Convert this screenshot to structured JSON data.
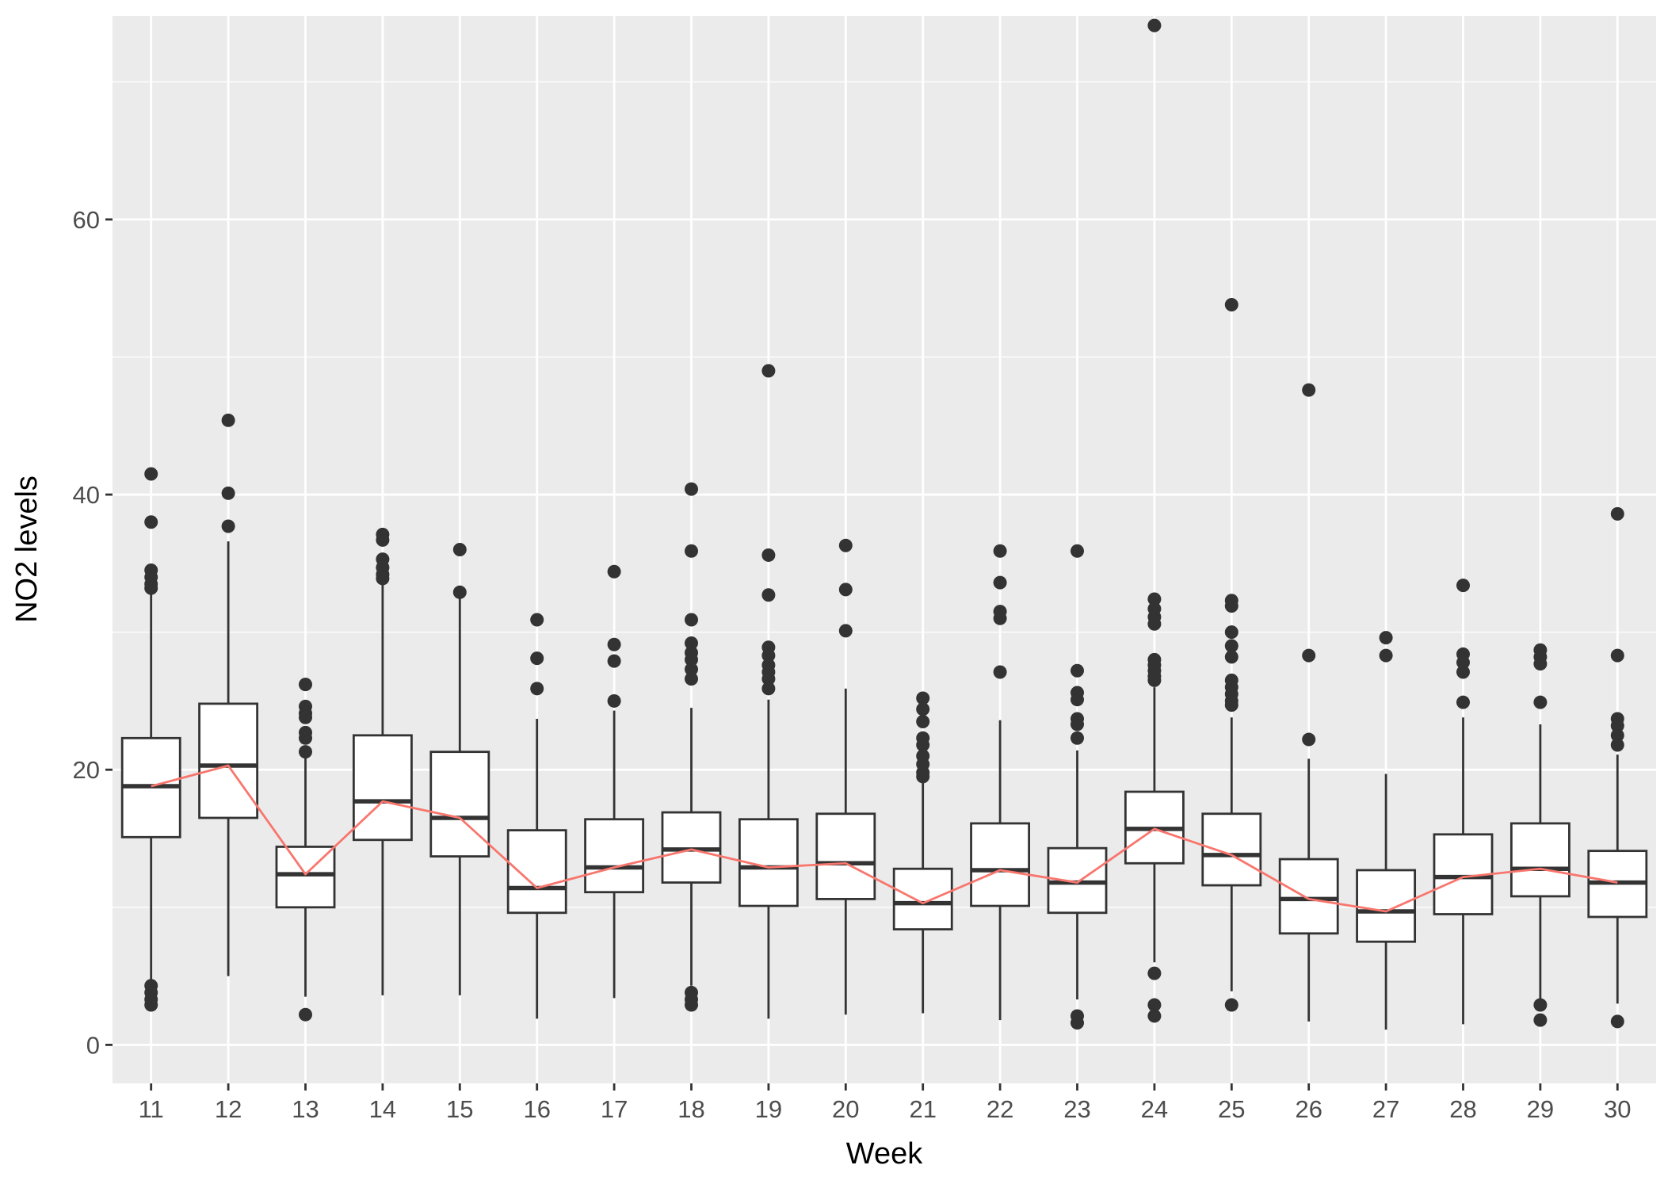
{
  "chart_data": {
    "type": "boxplot",
    "xlabel": "Week",
    "ylabel": "NO2 levels",
    "ylim": [
      -2.8,
      74.8
    ],
    "yticks": [
      0,
      20,
      40,
      60
    ],
    "categories": [
      "11",
      "12",
      "13",
      "14",
      "15",
      "16",
      "17",
      "18",
      "19",
      "20",
      "21",
      "22",
      "23",
      "24",
      "25",
      "26",
      "27",
      "28",
      "29",
      "30"
    ],
    "boxes": [
      {
        "lo": 4.3,
        "q1": 15.1,
        "med": 18.8,
        "q3": 22.3,
        "hi": 32.8,
        "outliers": [
          41.5,
          38.0,
          34.5,
          34.0,
          33.5,
          33.2,
          4.3,
          3.8,
          3.3,
          2.9
        ]
      },
      {
        "lo": 5.0,
        "q1": 16.5,
        "med": 20.3,
        "q3": 24.8,
        "hi": 36.6,
        "outliers": [
          45.4,
          40.1,
          37.7
        ]
      },
      {
        "lo": 3.5,
        "q1": 10.0,
        "med": 12.4,
        "q3": 14.4,
        "hi": 21.1,
        "outliers": [
          26.2,
          24.6,
          24.1,
          23.8,
          22.7,
          22.3,
          21.3,
          2.2
        ]
      },
      {
        "lo": 3.6,
        "q1": 14.9,
        "med": 17.7,
        "q3": 22.5,
        "hi": 33.7,
        "outliers": [
          37.1,
          36.7,
          35.3,
          34.7,
          34.2,
          33.9
        ]
      },
      {
        "lo": 3.6,
        "q1": 13.7,
        "med": 16.5,
        "q3": 21.3,
        "hi": 32.6,
        "outliers": [
          36.0,
          32.9
        ]
      },
      {
        "lo": 1.9,
        "q1": 9.6,
        "med": 11.4,
        "q3": 15.6,
        "hi": 23.7,
        "outliers": [
          30.9,
          28.1,
          25.9
        ]
      },
      {
        "lo": 3.4,
        "q1": 11.1,
        "med": 12.9,
        "q3": 16.4,
        "hi": 24.3,
        "outliers": [
          34.4,
          29.1,
          27.9,
          25.0
        ]
      },
      {
        "lo": 4.3,
        "q1": 11.8,
        "med": 14.2,
        "q3": 16.9,
        "hi": 24.5,
        "outliers": [
          40.4,
          35.9,
          30.9,
          29.2,
          28.5,
          28.0,
          27.3,
          26.6,
          3.8,
          3.3,
          2.9
        ]
      },
      {
        "lo": 1.9,
        "q1": 10.1,
        "med": 12.9,
        "q3": 16.4,
        "hi": 25.1,
        "outliers": [
          49.0,
          35.6,
          32.7,
          28.9,
          28.3,
          27.6,
          27.1,
          26.6,
          25.9
        ]
      },
      {
        "lo": 2.2,
        "q1": 10.6,
        "med": 13.2,
        "q3": 16.8,
        "hi": 25.9,
        "outliers": [
          36.3,
          33.1,
          30.1
        ]
      },
      {
        "lo": 2.3,
        "q1": 8.4,
        "med": 10.3,
        "q3": 12.8,
        "hi": 19.2,
        "outliers": [
          25.2,
          24.4,
          23.5,
          22.3,
          21.8,
          21.0,
          20.4,
          19.8,
          19.5
        ]
      },
      {
        "lo": 1.8,
        "q1": 10.1,
        "med": 12.7,
        "q3": 16.1,
        "hi": 23.6,
        "outliers": [
          35.9,
          33.6,
          31.5,
          31.0,
          27.1
        ]
      },
      {
        "lo": 3.3,
        "q1": 9.6,
        "med": 11.8,
        "q3": 14.3,
        "hi": 21.4,
        "outliers": [
          35.9,
          27.2,
          25.6,
          25.1,
          23.7,
          23.3,
          22.3,
          2.1,
          1.6
        ]
      },
      {
        "lo": 6.0,
        "q1": 13.2,
        "med": 15.7,
        "q3": 18.4,
        "hi": 26.0,
        "outliers": [
          74.1,
          32.4,
          31.7,
          31.1,
          30.6,
          28.0,
          27.6,
          27.2,
          26.8,
          26.5,
          5.2,
          2.9,
          2.1
        ]
      },
      {
        "lo": 3.9,
        "q1": 11.6,
        "med": 13.8,
        "q3": 16.8,
        "hi": 23.8,
        "outliers": [
          53.8,
          32.3,
          31.9,
          30.0,
          29.0,
          28.2,
          26.5,
          26.0,
          25.5,
          25.0,
          24.7,
          2.9
        ]
      },
      {
        "lo": 1.7,
        "q1": 8.1,
        "med": 10.6,
        "q3": 13.5,
        "hi": 20.8,
        "outliers": [
          47.6,
          28.3,
          22.2
        ]
      },
      {
        "lo": 1.1,
        "q1": 7.5,
        "med": 9.7,
        "q3": 12.7,
        "hi": 19.7,
        "outliers": [
          29.6,
          28.3
        ]
      },
      {
        "lo": 1.5,
        "q1": 9.5,
        "med": 12.2,
        "q3": 15.3,
        "hi": 23.8,
        "outliers": [
          33.4,
          28.4,
          27.8,
          27.1,
          24.9
        ]
      },
      {
        "lo": 3.3,
        "q1": 10.8,
        "med": 12.8,
        "q3": 16.1,
        "hi": 23.3,
        "outliers": [
          28.7,
          28.2,
          27.7,
          24.9,
          2.9,
          1.8
        ]
      },
      {
        "lo": 3.0,
        "q1": 9.3,
        "med": 11.8,
        "q3": 14.1,
        "hi": 21.1,
        "outliers": [
          38.6,
          28.3,
          23.7,
          23.2,
          22.5,
          21.8,
          1.7
        ]
      }
    ],
    "line_series": {
      "color": "#F8766D",
      "values": [
        18.8,
        20.3,
        12.4,
        17.7,
        16.5,
        11.4,
        12.9,
        14.2,
        12.9,
        13.2,
        10.3,
        12.7,
        11.8,
        15.7,
        13.8,
        10.6,
        9.7,
        12.2,
        12.8,
        11.8
      ]
    },
    "grid": true,
    "legend": "none",
    "colors": {
      "panel_bg": "#EBEBEB",
      "grid": "#FFFFFF",
      "box_fill": "#FFFFFF",
      "box_stroke": "#333333",
      "outlier": "#333333"
    }
  }
}
